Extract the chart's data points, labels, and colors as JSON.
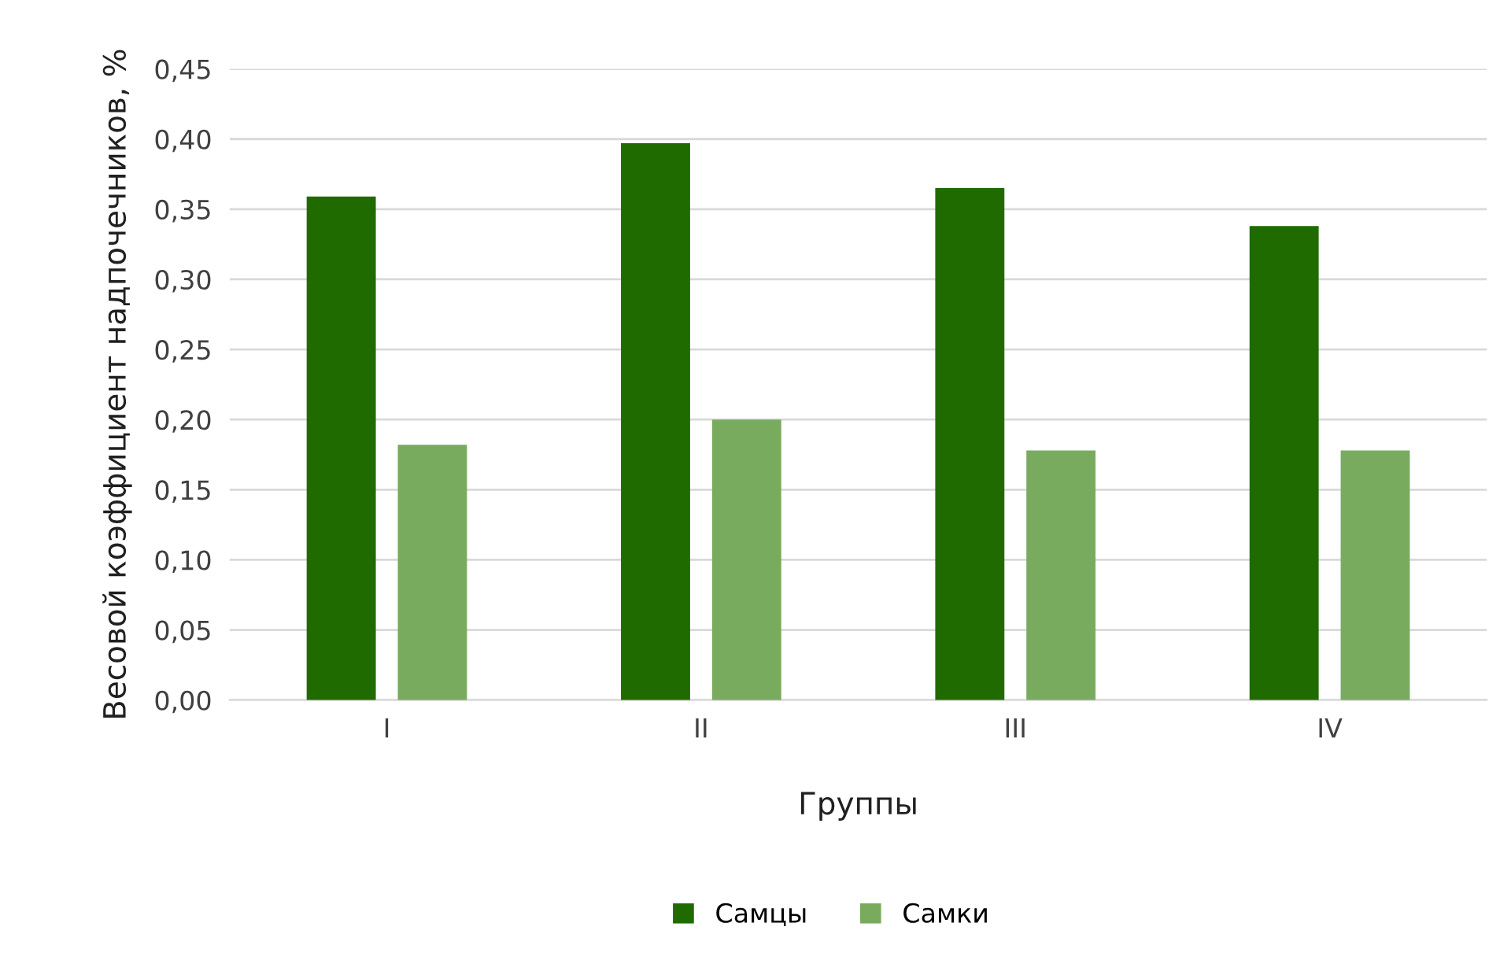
{
  "chart_data": {
    "type": "bar",
    "xlabel": "Группы",
    "ylabel": "Весовой коэффициент надпочечников, %",
    "categories": [
      "I",
      "II",
      "III",
      "IV"
    ],
    "series": [
      {
        "name": "Самцы",
        "color": "#1f6b00",
        "values": [
          0.359,
          0.397,
          0.365,
          0.338
        ]
      },
      {
        "name": "Самки",
        "color": "#79ab5f",
        "values": [
          0.182,
          0.2,
          0.178,
          0.178
        ]
      }
    ],
    "ylim": [
      0,
      0.45
    ],
    "yticks": [
      {
        "value": 0,
        "label": "0,00"
      },
      {
        "value": 0.05,
        "label": "0,05"
      },
      {
        "value": 0.1,
        "label": "0,10"
      },
      {
        "value": 0.15,
        "label": "0,15"
      },
      {
        "value": 0.2,
        "label": "0,20"
      },
      {
        "value": 0.25,
        "label": "0,25"
      },
      {
        "value": 0.3,
        "label": "0,30"
      },
      {
        "value": 0.35,
        "label": "0,35"
      },
      {
        "value": 0.4,
        "label": "0,40"
      },
      {
        "value": 0.45,
        "label": "0,45"
      }
    ],
    "grid": "y",
    "legend": "bottom"
  }
}
